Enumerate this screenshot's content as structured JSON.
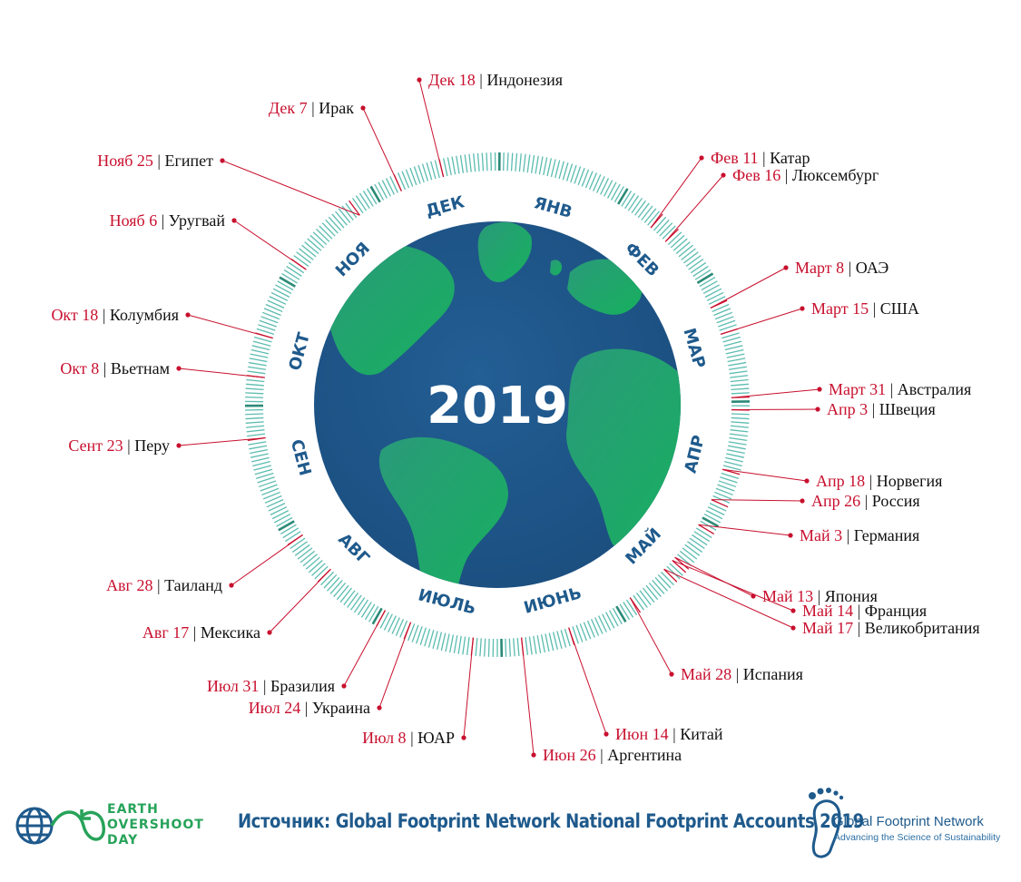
{
  "year": "2019",
  "months": [
    "ЯНВ",
    "ФЕВ",
    "МАР",
    "АПР",
    "МАЙ",
    "ИЮНЬ",
    "ИЮЛЬ",
    "АВГ",
    "СЕН",
    "ОКТ",
    "НОЯ",
    "ДЕК"
  ],
  "separator": "|",
  "countries": [
    {
      "day": 352,
      "date": "Дек 18",
      "country": "Индонезия"
    },
    {
      "day": 341,
      "date": "Дек 7",
      "country": "Ирак"
    },
    {
      "day": 329,
      "date": "Нояб 25",
      "country": "Египет"
    },
    {
      "day": 310,
      "date": "Нояб 6",
      "country": "Уругвай"
    },
    {
      "day": 291,
      "date": "Окт 18",
      "country": "Колумбия"
    },
    {
      "day": 281,
      "date": "Окт 8",
      "country": "Вьетнам"
    },
    {
      "day": 266,
      "date": "Сент 23",
      "country": "Перу"
    },
    {
      "day": 240,
      "date": "Авг 28",
      "country": "Таиланд"
    },
    {
      "day": 229,
      "date": "Авг 17",
      "country": "Мексика"
    },
    {
      "day": 212,
      "date": "Июл 31",
      "country": "Бразилия"
    },
    {
      "day": 205,
      "date": "Июл 24",
      "country": "Украина"
    },
    {
      "day": 189,
      "date": "Июл 8",
      "country": "ЮАР"
    },
    {
      "day": 177,
      "date": "Июн 26",
      "country": "Аргентина"
    },
    {
      "day": 165,
      "date": "Июн 14",
      "country": "Китай"
    },
    {
      "day": 148,
      "date": "Май 28",
      "country": "Испания"
    },
    {
      "day": 137,
      "date": "Май 17",
      "country": "Великобритания"
    },
    {
      "day": 134,
      "date": "Май 14",
      "country": "Франция"
    },
    {
      "day": 133,
      "date": "Май 13",
      "country": "Япония"
    },
    {
      "day": 123,
      "date": "Май 3",
      "country": "Германия"
    },
    {
      "day": 116,
      "date": "Апр 26",
      "country": "Россия"
    },
    {
      "day": 108,
      "date": "Апр 18",
      "country": "Норвегия"
    },
    {
      "day": 93,
      "date": "Апр 3",
      "country": "Швеция"
    },
    {
      "day": 90,
      "date": "Март 31",
      "country": "Австралия"
    },
    {
      "day": 74,
      "date": "Март 15",
      "country": "США"
    },
    {
      "day": 67,
      "date": "Март 8",
      "country": "ОАЭ"
    },
    {
      "day": 47,
      "date": "Фев 16",
      "country": "Люксембург"
    },
    {
      "day": 42,
      "date": "Фев 11",
      "country": "Катар"
    }
  ],
  "footer": {
    "source": "Источник: Global Footprint Network National Footprint Accounts 2019",
    "eod_line1": "EARTH",
    "eod_line2": "OVERSHOOT",
    "eod_line3": "DAY",
    "gfn_name": "Global Footprint Network",
    "gfn_tagline": "Advancing the Science of Sustainability"
  },
  "colors": {
    "date": "#c8102e",
    "brand_blue": "#1f5a8c",
    "brand_green": "#27a35a",
    "ocean": "#1f5a8c",
    "land": "#1aa563",
    "tick": "#5bbcb0"
  }
}
